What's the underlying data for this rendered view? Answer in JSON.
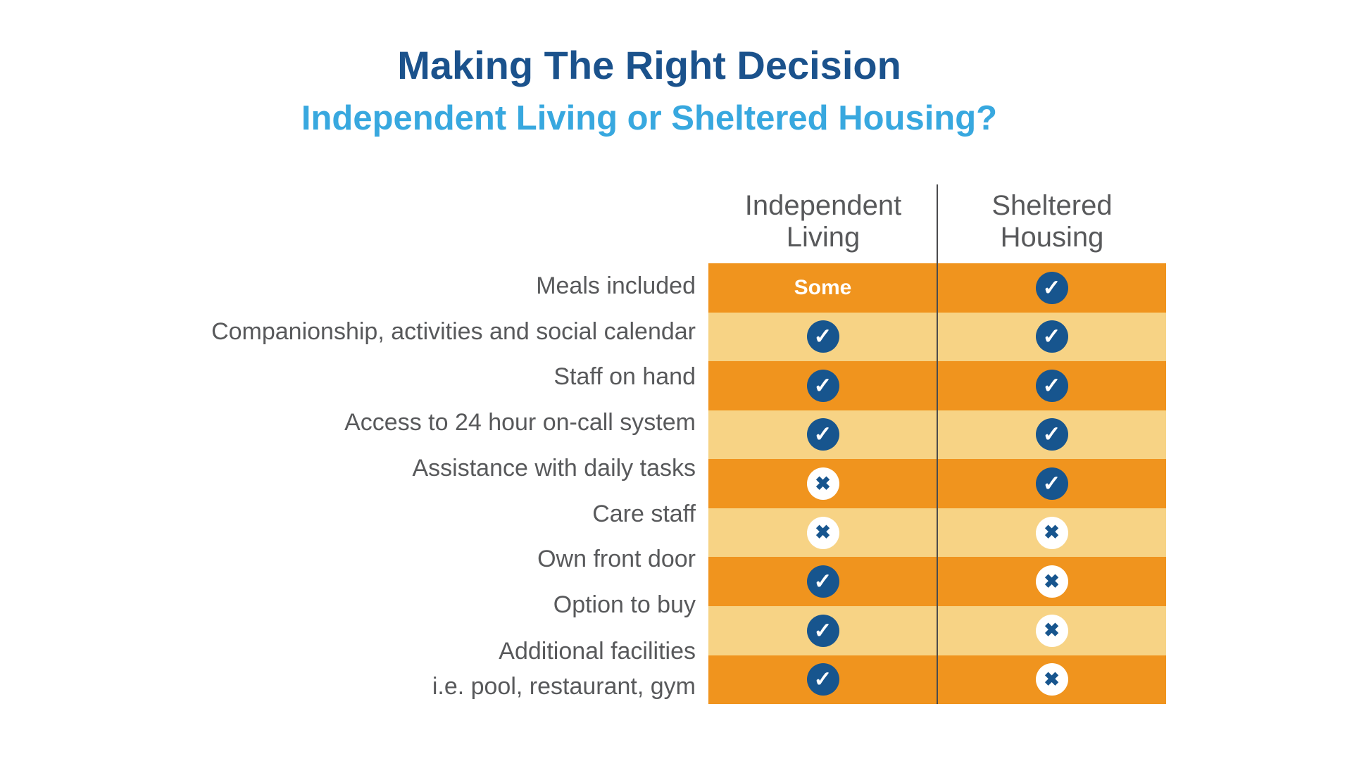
{
  "chart_data": {
    "type": "table",
    "title": "Making The Right Decision",
    "subtitle": "Independent Living or Sheltered Housing?",
    "columns": [
      "Independent Living",
      "Sheltered Housing"
    ],
    "column_lines": [
      [
        "Independent",
        "Living"
      ],
      [
        "Sheltered",
        "Housing"
      ]
    ],
    "rows": [
      {
        "label": "Meals included",
        "label_lines": [
          "Meals included"
        ],
        "values": [
          "Some",
          "yes"
        ]
      },
      {
        "label": "Companionship, activities and social calendar",
        "label_lines": [
          "Companionship, activities and social calendar"
        ],
        "values": [
          "yes",
          "yes"
        ]
      },
      {
        "label": "Staff on hand",
        "label_lines": [
          "Staff on hand"
        ],
        "values": [
          "yes",
          "yes"
        ]
      },
      {
        "label": "Access to 24 hour on-call system",
        "label_lines": [
          "Access to 24 hour on-call system"
        ],
        "values": [
          "yes",
          "yes"
        ]
      },
      {
        "label": "Assistance with daily tasks",
        "label_lines": [
          "Assistance with daily tasks"
        ],
        "values": [
          "no",
          "yes"
        ]
      },
      {
        "label": "Care staff",
        "label_lines": [
          "Care staff"
        ],
        "values": [
          "no",
          "no"
        ]
      },
      {
        "label": "Own front door",
        "label_lines": [
          "Own front door"
        ],
        "values": [
          "yes",
          "no"
        ]
      },
      {
        "label": "Option to buy",
        "label_lines": [
          "Option to buy"
        ],
        "values": [
          "yes",
          "no"
        ]
      },
      {
        "label": "Additional facilities i.e. pool, restaurant, gym",
        "label_lines": [
          "Additional facilities",
          "i.e. pool, restaurant, gym"
        ],
        "values": [
          "yes",
          "no"
        ]
      }
    ]
  },
  "icons": {
    "check_glyph": "✓",
    "cross_glyph": "✖"
  },
  "colors": {
    "title_blue": "#1B528C",
    "subtitle_blue": "#38A8DF",
    "row_dark_orange": "#F0941E",
    "row_light_orange": "#F7D385",
    "badge_blue": "#17558E",
    "badge_white": "#FFFFFF",
    "text_gray": "#58595B",
    "divider_gray": "#4B4B4D"
  }
}
